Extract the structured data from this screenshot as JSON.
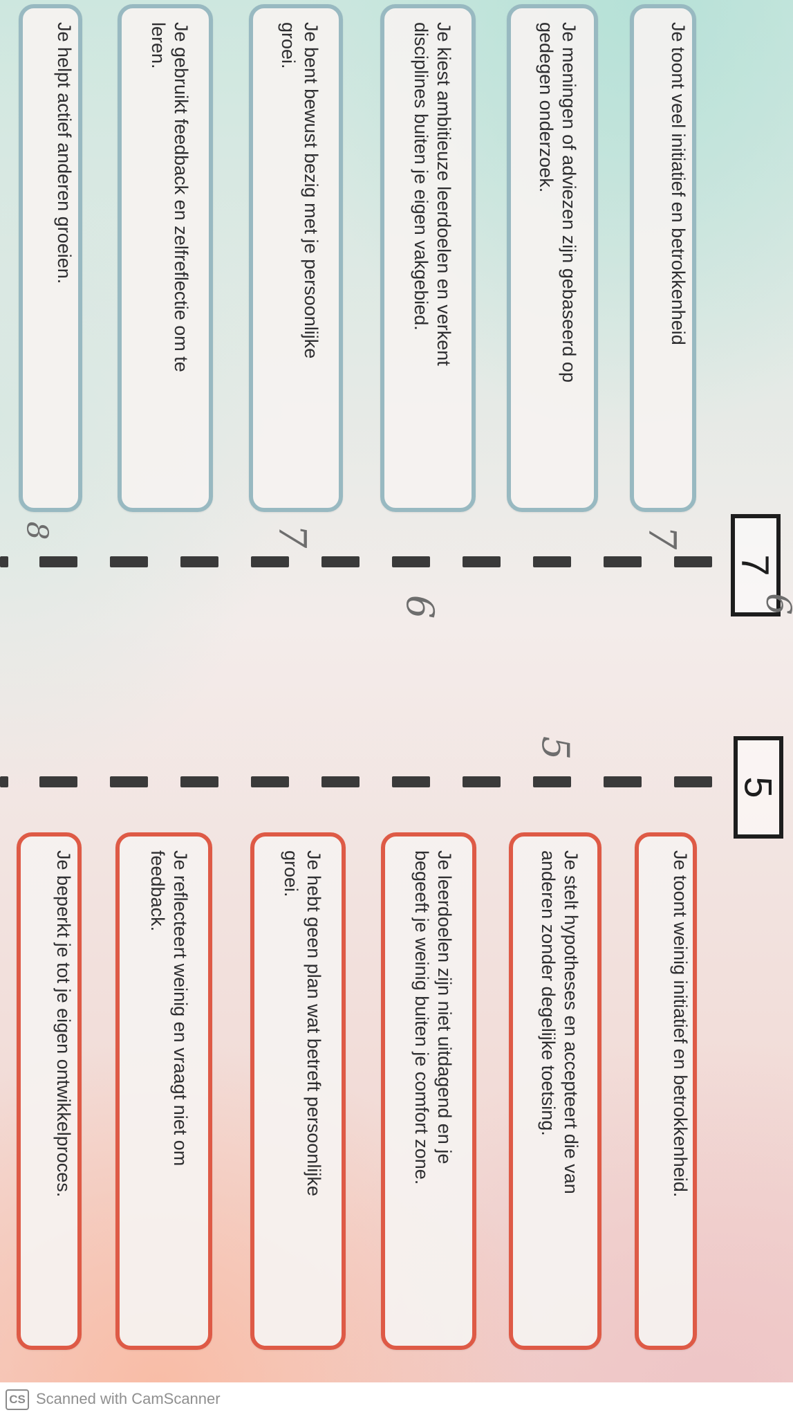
{
  "score_boxes": {
    "left": "7",
    "right": "5"
  },
  "score_7_cards": [
    {
      "lines": [
        "Je toont veel initiatief en betrokkenheid"
      ]
    },
    {
      "lines": [
        "Je meningen of adviezen zijn gebaseerd op",
        "gedegen onderzoek."
      ]
    },
    {
      "lines": [
        "Je kiest ambitieuze leerdoelen en verkent",
        "disciplines buiten je eigen vakgebied."
      ]
    },
    {
      "lines": [
        "Je bent bewust bezig met je persoonlijke",
        "groei."
      ]
    },
    {
      "lines": [
        "Je gebruikt feedback en zelfreflectie om te",
        "leren."
      ]
    },
    {
      "lines": [
        "Je helpt actief anderen groeien."
      ]
    }
  ],
  "score_5_cards": [
    {
      "lines": [
        "Je toont weinig initiatief en betrokkenheid."
      ]
    },
    {
      "lines": [
        "Je stelt hypotheses en accepteert die van",
        "anderen zonder degelijke toetsing."
      ]
    },
    {
      "lines": [
        "Je leerdoelen zijn niet uitdagend en je",
        "begeeft je weinig buiten je comfort zone."
      ]
    },
    {
      "lines": [
        "Je hebt geen plan wat betreft persoonlijke",
        "groei."
      ]
    },
    {
      "lines": [
        "Je reflecteert weinig en vraagt niet om",
        "feedback."
      ]
    },
    {
      "lines": [
        "Je beperkt je tot je eigen ontwikkelproces."
      ]
    }
  ],
  "handwritten_marks": [
    "7",
    "6",
    "5",
    "7",
    "6",
    "8"
  ],
  "footer": {
    "logo": "CS",
    "text": "Scanned with CamScanner"
  },
  "colors": {
    "teal_border": "#98b9c1",
    "red_border": "#de5a46",
    "dash": "#3a3a3a"
  }
}
